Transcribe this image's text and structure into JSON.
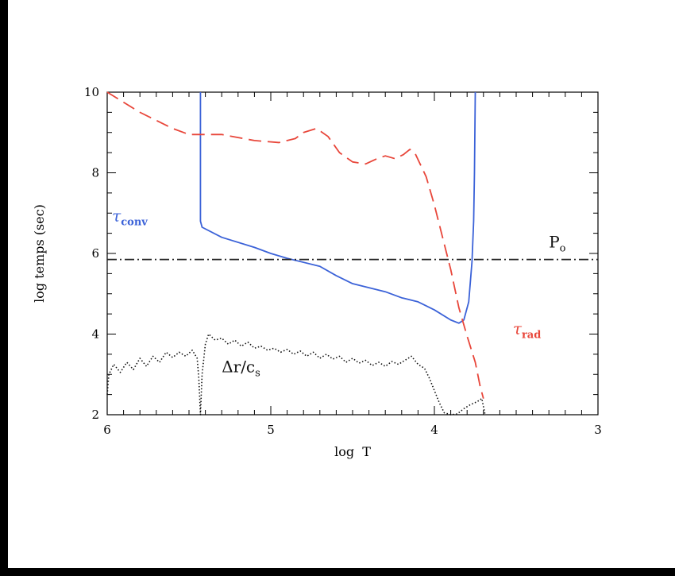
{
  "chart_data": {
    "type": "line",
    "xlabel": "log  T",
    "ylabel": "log temps (sec)",
    "xlim": [
      6,
      3
    ],
    "ylim": [
      2,
      10
    ],
    "x_ticks": [
      6,
      5,
      4,
      3
    ],
    "y_ticks": [
      2,
      4,
      6,
      8,
      10
    ],
    "x_tick_labels": [
      "6",
      "5",
      "4",
      "3"
    ],
    "y_tick_labels": [
      "2",
      "4",
      "6",
      "8",
      "10"
    ],
    "grid": false,
    "series": [
      {
        "name": "τ_conv",
        "style": "solid",
        "color": "#3b62d8",
        "points": [
          [
            5.43,
            10.0
          ],
          [
            5.43,
            8.0
          ],
          [
            5.43,
            7.2
          ],
          [
            5.43,
            6.8
          ],
          [
            5.42,
            6.65
          ],
          [
            5.3,
            6.4
          ],
          [
            5.1,
            6.15
          ],
          [
            5.0,
            6.0
          ],
          [
            4.9,
            5.88
          ],
          [
            4.7,
            5.68
          ],
          [
            4.6,
            5.45
          ],
          [
            4.5,
            5.25
          ],
          [
            4.4,
            5.15
          ],
          [
            4.3,
            5.05
          ],
          [
            4.2,
            4.9
          ],
          [
            4.1,
            4.8
          ],
          [
            4.0,
            4.6
          ],
          [
            3.9,
            4.35
          ],
          [
            3.85,
            4.27
          ],
          [
            3.82,
            4.35
          ],
          [
            3.79,
            4.8
          ],
          [
            3.77,
            5.8
          ],
          [
            3.76,
            6.8
          ],
          [
            3.755,
            8.0
          ],
          [
            3.75,
            10.0
          ]
        ]
      },
      {
        "name": "τ_rad",
        "style": "dashed",
        "color": "#e8463a",
        "points": [
          [
            6.0,
            10.0
          ],
          [
            5.8,
            9.5
          ],
          [
            5.6,
            9.1
          ],
          [
            5.5,
            8.95
          ],
          [
            5.3,
            8.95
          ],
          [
            5.1,
            8.8
          ],
          [
            4.95,
            8.75
          ],
          [
            4.85,
            8.85
          ],
          [
            4.8,
            9.0
          ],
          [
            4.72,
            9.1
          ],
          [
            4.65,
            8.9
          ],
          [
            4.58,
            8.5
          ],
          [
            4.5,
            8.27
          ],
          [
            4.42,
            8.22
          ],
          [
            4.35,
            8.35
          ],
          [
            4.3,
            8.42
          ],
          [
            4.24,
            8.35
          ],
          [
            4.19,
            8.45
          ],
          [
            4.15,
            8.58
          ],
          [
            4.12,
            8.5
          ],
          [
            4.05,
            7.9
          ],
          [
            4.0,
            7.2
          ],
          [
            3.95,
            6.4
          ],
          [
            3.9,
            5.6
          ],
          [
            3.85,
            4.65
          ],
          [
            3.8,
            3.95
          ],
          [
            3.75,
            3.3
          ],
          [
            3.72,
            2.7
          ],
          [
            3.7,
            2.4
          ]
        ]
      },
      {
        "name": "Δr/c_s",
        "style": "dotted",
        "color": "#111111",
        "points": [
          [
            6.0,
            2.5
          ],
          [
            5.99,
            3.0
          ],
          [
            5.96,
            3.25
          ],
          [
            5.92,
            3.05
          ],
          [
            5.88,
            3.3
          ],
          [
            5.84,
            3.12
          ],
          [
            5.8,
            3.4
          ],
          [
            5.76,
            3.2
          ],
          [
            5.72,
            3.45
          ],
          [
            5.68,
            3.3
          ],
          [
            5.64,
            3.55
          ],
          [
            5.6,
            3.42
          ],
          [
            5.56,
            3.55
          ],
          [
            5.52,
            3.45
          ],
          [
            5.48,
            3.6
          ],
          [
            5.45,
            3.4
          ],
          [
            5.44,
            2.9
          ],
          [
            5.43,
            2.0
          ],
          [
            5.42,
            3.0
          ],
          [
            5.4,
            3.75
          ],
          [
            5.38,
            4.0
          ],
          [
            5.34,
            3.85
          ],
          [
            5.3,
            3.9
          ],
          [
            5.26,
            3.75
          ],
          [
            5.22,
            3.85
          ],
          [
            5.18,
            3.7
          ],
          [
            5.14,
            3.8
          ],
          [
            5.1,
            3.65
          ],
          [
            5.06,
            3.7
          ],
          [
            5.02,
            3.6
          ],
          [
            4.98,
            3.65
          ],
          [
            4.94,
            3.55
          ],
          [
            4.9,
            3.62
          ],
          [
            4.86,
            3.5
          ],
          [
            4.82,
            3.58
          ],
          [
            4.78,
            3.45
          ],
          [
            4.74,
            3.55
          ],
          [
            4.7,
            3.4
          ],
          [
            4.66,
            3.5
          ],
          [
            4.62,
            3.38
          ],
          [
            4.58,
            3.45
          ],
          [
            4.54,
            3.3
          ],
          [
            4.5,
            3.4
          ],
          [
            4.46,
            3.28
          ],
          [
            4.42,
            3.35
          ],
          [
            4.38,
            3.22
          ],
          [
            4.34,
            3.3
          ],
          [
            4.3,
            3.2
          ],
          [
            4.26,
            3.32
          ],
          [
            4.22,
            3.25
          ],
          [
            4.18,
            3.35
          ],
          [
            4.14,
            3.45
          ],
          [
            4.1,
            3.25
          ],
          [
            4.06,
            3.15
          ],
          [
            4.03,
            2.9
          ],
          [
            4.0,
            2.6
          ],
          [
            3.97,
            2.3
          ],
          [
            3.94,
            2.05
          ],
          [
            3.9,
            2.0
          ],
          [
            3.86,
            2.02
          ],
          [
            3.82,
            2.15
          ],
          [
            3.78,
            2.25
          ],
          [
            3.74,
            2.32
          ],
          [
            3.71,
            2.4
          ],
          [
            3.69,
            2.0
          ]
        ]
      },
      {
        "name": "P_o",
        "style": "dashdot",
        "color": "#222222",
        "points": [
          [
            6.0,
            5.85
          ],
          [
            3.0,
            5.85
          ]
        ]
      }
    ],
    "annotations": [
      {
        "id": "tau-conv",
        "main": "τ",
        "sub": "conv",
        "x": 5.97,
        "y": 6.8,
        "color": "#3b62d8"
      },
      {
        "id": "tau-rad",
        "main": "τ",
        "sub": "rad",
        "x": 3.52,
        "y": 4.0,
        "color": "#e8463a"
      },
      {
        "id": "p-o",
        "main": "P",
        "sub": "o",
        "x": 3.3,
        "y": 6.15,
        "color": "#111111"
      },
      {
        "id": "dr-cs",
        "main": "Δr/c",
        "sub": "s",
        "x": 5.3,
        "y": 3.05,
        "color": "#111111"
      }
    ]
  }
}
